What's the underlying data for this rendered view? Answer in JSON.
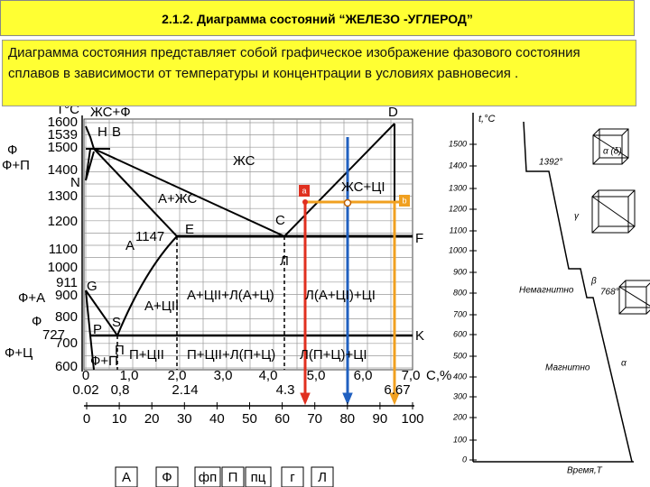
{
  "header": {
    "title": "2.1.2. Диаграмма состояний “ЖЕЛЕЗО -УГЛЕРОД”"
  },
  "intro": {
    "text": "Диаграмма состояния представляет собой графическое изображение фазового состояния сплавов в зависимости от температуры и концентрации в условиях равновесия ."
  },
  "diagram": {
    "temp_unit": "Т°С",
    "temperatures": [
      "1600",
      "1539",
      "1500",
      "1400",
      "1300",
      "1200",
      "1100",
      "1000",
      "911",
      "900",
      "800",
      "727",
      "700",
      "600"
    ],
    "side_labels": [
      "Ф",
      "Ф+П",
      "N",
      "Ф+А",
      "Ф",
      "Ф+Ц",
      "Ф+П"
    ],
    "points": [
      "D",
      "H",
      "B",
      "E",
      "C",
      "F",
      "G",
      "S",
      "P",
      "K",
      "a",
      "b"
    ],
    "eutectic_temp": "1147",
    "regions": [
      "ЖС+Ф",
      "ЖС",
      "А+ЖС",
      "ЖС+ЦI",
      "А",
      "Л",
      "А+ЦII+Л(А+Ц)",
      "Л(А+ЦI)+ЦI",
      "А+ЦII",
      "П",
      "П+ЦII",
      "П+ЦII+Л(П+Ц)",
      "Л(П+Ц)+ЦI"
    ],
    "concentration_ticks": [
      "0",
      "1,0",
      "2,0",
      "3,0",
      "4,0",
      "5,0",
      "6,0",
      "7,0"
    ],
    "concentration_unit": "С,%",
    "key_concentrations": [
      "0.02",
      "0,8",
      "2.14",
      "4.3",
      "6.67"
    ],
    "lower_scale": [
      "0",
      "10",
      "20",
      "30",
      "40",
      "50",
      "60",
      "70",
      "80",
      "90",
      "100"
    ]
  },
  "cooling_curve": {
    "axis_label": "t,°C",
    "ticks": [
      "1500",
      "1400",
      "1300",
      "1200",
      "1100",
      "1000",
      "900",
      "800",
      "700",
      "600",
      "500",
      "400",
      "300",
      "200",
      "100",
      "0"
    ],
    "labels": [
      "1392°",
      "α (δ)",
      "γ",
      "Немагнитно",
      "β",
      "768°",
      "Магнитно",
      "α"
    ],
    "time_label": "Время,Т"
  },
  "legend": [
    "А",
    "Ф",
    "фп",
    "П",
    "пц",
    "г",
    "Л"
  ]
}
